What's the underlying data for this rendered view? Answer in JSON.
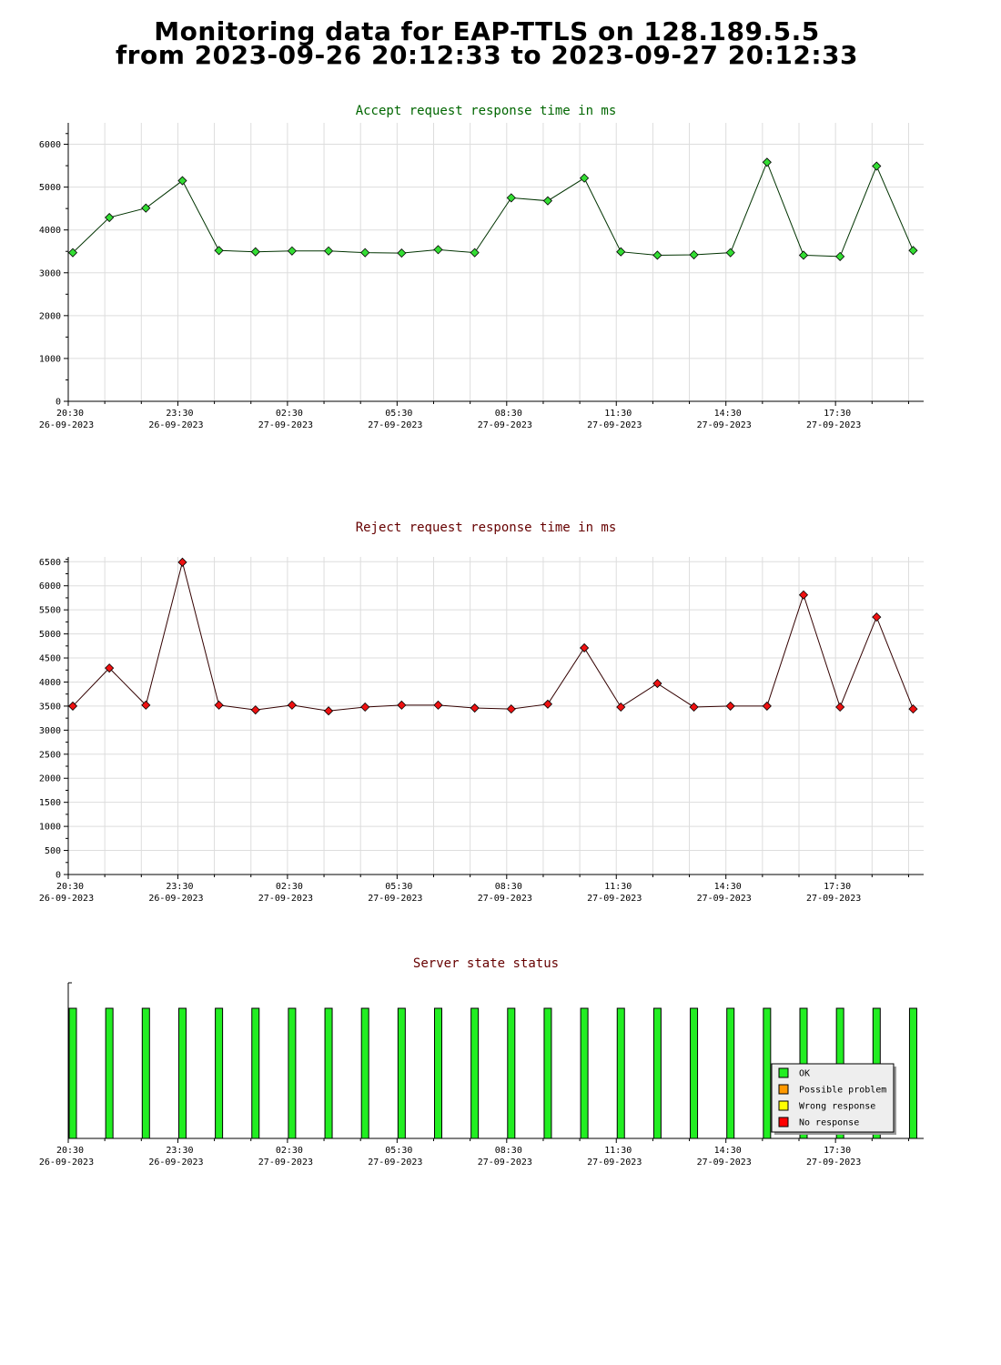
{
  "page": {
    "title_line1": "Monitoring data for EAP-TTLS on 128.189.5.5",
    "title_line2": "from 2023-09-26 20:12:33 to 2023-09-27 20:12:33"
  },
  "colors": {
    "accept_marker": "#33dd33",
    "accept_line": "#003300",
    "accept_title": "#006600",
    "reject_marker": "#ee1111",
    "reject_line": "#330000",
    "reject_title": "#660000",
    "status_title": "#660000",
    "grid": "#dddddd",
    "ok": "#22ee22",
    "possible_problem": "#ff9900",
    "wrong_response": "#ffff00",
    "no_response": "#ff0000"
  },
  "x_axis_ticks": [
    {
      "time": "20:30",
      "date": "26-09-2023"
    },
    {
      "time": "23:30",
      "date": "26-09-2023"
    },
    {
      "time": "02:30",
      "date": "27-09-2023"
    },
    {
      "time": "05:30",
      "date": "27-09-2023"
    },
    {
      "time": "08:30",
      "date": "27-09-2023"
    },
    {
      "time": "11:30",
      "date": "27-09-2023"
    },
    {
      "time": "14:30",
      "date": "27-09-2023"
    },
    {
      "time": "17:30",
      "date": "27-09-2023"
    }
  ],
  "chart_data": [
    {
      "type": "line",
      "title": "Accept request response time in ms",
      "ylim": [
        0,
        6500
      ],
      "y_ticks": [
        0,
        1000,
        2000,
        3000,
        4000,
        5000,
        6000
      ],
      "grid": true,
      "x": [
        "20:30",
        "21:30",
        "22:30",
        "23:30",
        "00:30",
        "01:30",
        "02:30",
        "03:30",
        "04:30",
        "05:30",
        "06:30",
        "07:30",
        "08:30",
        "09:30",
        "10:30",
        "11:30",
        "12:30",
        "13:30",
        "14:30",
        "15:30",
        "16:30",
        "17:30",
        "18:30",
        "19:30"
      ],
      "values": [
        3470,
        4290,
        4510,
        5150,
        3520,
        3490,
        3510,
        3510,
        3470,
        3460,
        3540,
        3470,
        4750,
        4680,
        5210,
        3490,
        3410,
        3420,
        3470,
        5580,
        3410,
        3380,
        5490,
        3520
      ]
    },
    {
      "type": "line",
      "title": "Reject request response time in ms",
      "ylim": [
        0,
        6600
      ],
      "y_ticks": [
        0,
        500,
        1000,
        1500,
        2000,
        2500,
        3000,
        3500,
        4000,
        4500,
        5000,
        5500,
        6000,
        6500
      ],
      "grid": true,
      "x": [
        "20:30",
        "21:30",
        "22:30",
        "23:30",
        "00:30",
        "01:30",
        "02:30",
        "03:30",
        "04:30",
        "05:30",
        "06:30",
        "07:30",
        "08:30",
        "09:30",
        "10:30",
        "11:30",
        "12:30",
        "13:30",
        "14:30",
        "15:30",
        "16:30",
        "17:30",
        "18:30",
        "19:30"
      ],
      "values": [
        3500,
        4290,
        3520,
        6490,
        3520,
        3420,
        3520,
        3400,
        3480,
        3520,
        3520,
        3460,
        3440,
        3540,
        4710,
        3480,
        3970,
        3480,
        3500,
        3500,
        5810,
        3480,
        5350,
        3440
      ]
    },
    {
      "type": "bar",
      "title": "Server state status",
      "grid": false,
      "legend_position": "bottom-right",
      "legend": [
        {
          "key": "ok",
          "label": "OK"
        },
        {
          "key": "possible_problem",
          "label": "Possible problem"
        },
        {
          "key": "wrong_response",
          "label": "Wrong response"
        },
        {
          "key": "no_response",
          "label": "No response"
        }
      ],
      "x": [
        "20:30",
        "21:30",
        "22:30",
        "23:30",
        "00:30",
        "01:30",
        "02:30",
        "03:30",
        "04:30",
        "05:30",
        "06:30",
        "07:30",
        "08:30",
        "09:30",
        "10:30",
        "11:30",
        "12:30",
        "13:30",
        "14:30",
        "15:30",
        "16:30",
        "17:30",
        "18:30",
        "19:30"
      ],
      "states": [
        "ok",
        "ok",
        "ok",
        "ok",
        "ok",
        "ok",
        "ok",
        "ok",
        "ok",
        "ok",
        "ok",
        "ok",
        "ok",
        "ok",
        "ok",
        "ok",
        "ok",
        "ok",
        "ok",
        "ok",
        "ok",
        "ok",
        "ok",
        "ok"
      ]
    }
  ]
}
